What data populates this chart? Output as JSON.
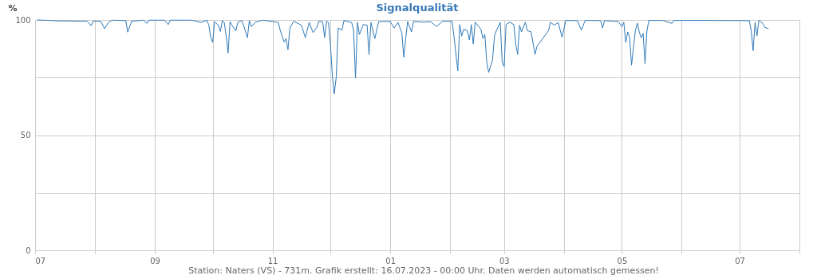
{
  "chart_data": {
    "type": "line",
    "title": "Signalqualität",
    "ylabel": "%",
    "annotations": [
      "Station: Naters (VS) - 731m. Grafik erstellt: 16.07.2023 - 00:00 Uhr. Daten werden automatisch gemessen!"
    ],
    "color": "#2f7ab9",
    "grid": true,
    "xlim": [
      "2022-07-01",
      "2023-08-01"
    ],
    "ylim": [
      0,
      100
    ],
    "xticks": [
      {
        "value": "2022-07-01",
        "label": "07"
      },
      {
        "value": "2022-08-01",
        "label": null
      },
      {
        "value": "2022-09-01",
        "label": "09"
      },
      {
        "value": "2022-10-01",
        "label": null
      },
      {
        "value": "2022-11-01",
        "label": "11"
      },
      {
        "value": "2022-12-01",
        "label": null
      },
      {
        "value": "2023-01-01",
        "label": "01"
      },
      {
        "value": "2023-02-01",
        "label": null
      },
      {
        "value": "2023-03-01",
        "label": "03"
      },
      {
        "value": "2023-04-01",
        "label": null
      },
      {
        "value": "2023-05-01",
        "label": "05"
      },
      {
        "value": "2023-06-01",
        "label": null
      },
      {
        "value": "2023-07-01",
        "label": "07"
      },
      {
        "value": "2023-08-01",
        "label": null
      }
    ],
    "yticks": [
      0,
      {
        "value": 25,
        "label": null
      },
      50,
      {
        "value": 75,
        "label": null
      },
      100
    ],
    "x": [
      "2022-07-02",
      "2022-07-13",
      "2022-07-28",
      "2022-07-30",
      "2022-07-31",
      "2022-08-04",
      "2022-08-06",
      "2022-08-08",
      "2022-08-10",
      "2022-08-17",
      "2022-08-18",
      "2022-08-20",
      "2022-08-26",
      "2022-08-28",
      "2022-08-29",
      "2022-09-06",
      "2022-09-08",
      "2022-09-09",
      "2022-09-20",
      "2022-09-25",
      "2022-09-28",
      "2022-09-29",
      "2022-09-30",
      "2022-10-01",
      "2022-10-02",
      "2022-10-04",
      "2022-10-05",
      "2022-10-06",
      "2022-10-07",
      "2022-10-08",
      "2022-10-09",
      "2022-10-10",
      "2022-10-11",
      "2022-10-13",
      "2022-10-14",
      "2022-10-16",
      "2022-10-17",
      "2022-10-19",
      "2022-10-20",
      "2022-10-21",
      "2022-10-23",
      "2022-10-27",
      "2022-11-01",
      "2022-11-04",
      "2022-11-05",
      "2022-11-07",
      "2022-11-08",
      "2022-11-09",
      "2022-11-10",
      "2022-11-12",
      "2022-11-16",
      "2022-11-18",
      "2022-11-20",
      "2022-11-22",
      "2022-11-24",
      "2022-11-25",
      "2022-11-27",
      "2022-11-28",
      "2022-11-29",
      "2022-11-30",
      "2022-12-01",
      "2022-12-02",
      "2022-12-03",
      "2022-12-04",
      "2022-12-05",
      "2022-12-07",
      "2022-12-08",
      "2022-12-12",
      "2022-12-13",
      "2022-12-14",
      "2022-12-15",
      "2022-12-16",
      "2022-12-18",
      "2022-12-20",
      "2022-12-21",
      "2022-12-22",
      "2022-12-24",
      "2022-12-26",
      "2023-01-01",
      "2023-01-03",
      "2023-01-05",
      "2023-01-07",
      "2023-01-08",
      "2023-01-09",
      "2023-01-10",
      "2023-01-12",
      "2023-01-13",
      "2023-01-18",
      "2023-01-22",
      "2023-01-25",
      "2023-01-28",
      "2023-02-02",
      "2023-02-03",
      "2023-02-05",
      "2023-02-06",
      "2023-02-07",
      "2023-02-08",
      "2023-02-10",
      "2023-02-11",
      "2023-02-12",
      "2023-02-13",
      "2023-02-14",
      "2023-02-17",
      "2023-02-18",
      "2023-02-19",
      "2023-02-20",
      "2023-02-21",
      "2023-02-23",
      "2023-02-24",
      "2023-02-25",
      "2023-02-27",
      "2023-02-28",
      "2023-03-01",
      "2023-03-02",
      "2023-03-04",
      "2023-03-06",
      "2023-03-07",
      "2023-03-08",
      "2023-03-09",
      "2023-03-10",
      "2023-03-12",
      "2023-03-13",
      "2023-03-15",
      "2023-03-17",
      "2023-03-18",
      "2023-03-24",
      "2023-03-25",
      "2023-03-27",
      "2023-03-29",
      "2023-03-31",
      "2023-04-02",
      "2023-04-08",
      "2023-04-10",
      "2023-04-12",
      "2023-04-20",
      "2023-04-21",
      "2023-04-22",
      "2023-04-27",
      "2023-04-29",
      "2023-05-01",
      "2023-05-02",
      "2023-05-03",
      "2023-05-04",
      "2023-05-05",
      "2023-05-06",
      "2023-05-08",
      "2023-05-09",
      "2023-05-10",
      "2023-05-11",
      "2023-05-12",
      "2023-05-13",
      "2023-05-14",
      "2023-05-15",
      "2023-05-22",
      "2023-05-27",
      "2023-05-28",
      "2023-06-15",
      "2023-07-06",
      "2023-07-07",
      "2023-07-08",
      "2023-07-09",
      "2023-07-10",
      "2023-07-11",
      "2023-07-13",
      "2023-07-14",
      "2023-07-16"
    ],
    "values": [
      100,
      99.6,
      99.4,
      97.5,
      99.4,
      99.4,
      96.2,
      98.9,
      99.9,
      99.7,
      94.7,
      99.4,
      99.9,
      98.5,
      99.9,
      99.9,
      98,
      99.9,
      99.9,
      98.9,
      99.9,
      97.7,
      92.5,
      90.2,
      99.2,
      97.7,
      95,
      99.7,
      98.9,
      93.1,
      85.6,
      99.2,
      97.7,
      95.2,
      98.9,
      99.8,
      97.7,
      92.3,
      99.7,
      97.1,
      98.9,
      99.9,
      99.3,
      98.9,
      95.5,
      90.4,
      91.9,
      87.1,
      96.5,
      99.4,
      97.7,
      92.3,
      98.9,
      94.5,
      96.8,
      99.4,
      99.2,
      92.3,
      99.4,
      98.9,
      89.6,
      75.8,
      67.9,
      75.2,
      96.5,
      95.6,
      99.7,
      98.9,
      95.5,
      74.8,
      98.9,
      93.7,
      98,
      97.7,
      85,
      98.9,
      91.9,
      99.3,
      99.3,
      96.5,
      98.9,
      94.4,
      83.8,
      91.9,
      99.3,
      94.8,
      99.3,
      99,
      99.2,
      97.1,
      99.4,
      99.4,
      93,
      77.9,
      98,
      93,
      95.9,
      95.3,
      91.3,
      98,
      89.6,
      99,
      95.9,
      91.9,
      93.7,
      81.6,
      77.2,
      82.7,
      93.1,
      95.4,
      98.9,
      81.6,
      79.8,
      98,
      99,
      98,
      89.6,
      85,
      97.7,
      94.8,
      99,
      95.4,
      94.8,
      85,
      88.5,
      95.4,
      99,
      97.7,
      98.9,
      92.5,
      99.8,
      99.7,
      95.6,
      99.8,
      99.7,
      96.5,
      99.7,
      99.4,
      99.4,
      97.1,
      99,
      90.2,
      94.8,
      92.5,
      80.4,
      95.4,
      98.6,
      94.8,
      92.2,
      94.2,
      81,
      95.4,
      99.8,
      99.8,
      98.5,
      99.8,
      99.8,
      99.7,
      95.4,
      86.7,
      98.9,
      93.1,
      99.8,
      98.5,
      96.8,
      96.2
    ]
  }
}
